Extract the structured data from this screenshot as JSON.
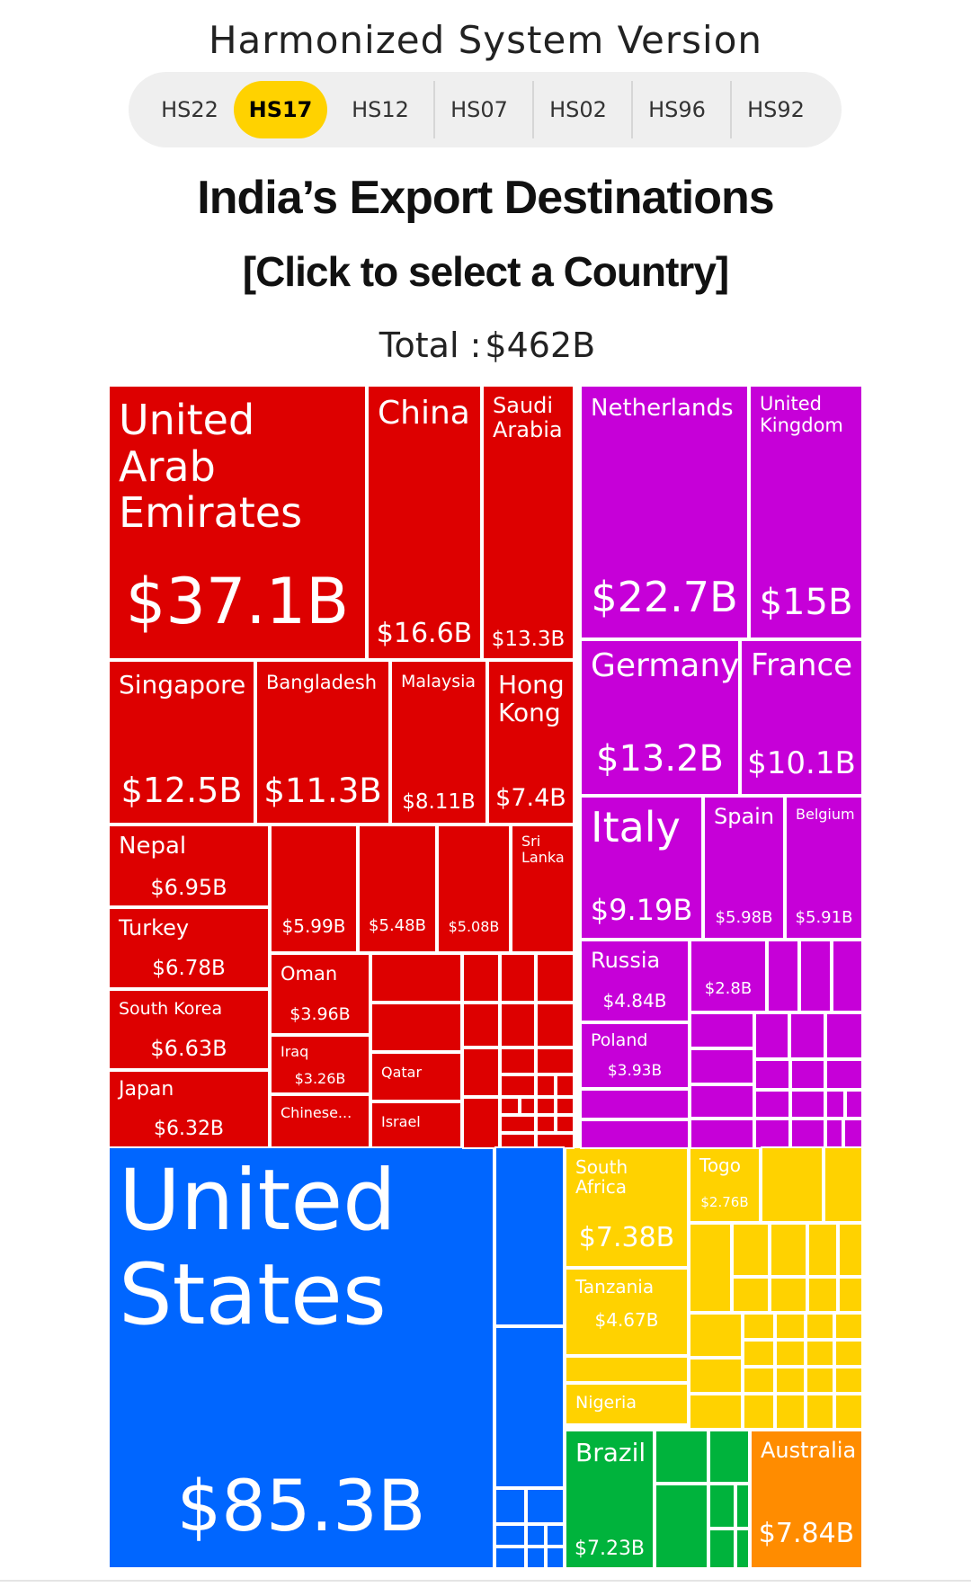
{
  "hs_selector": {
    "title": "Harmonized System Version",
    "tabs": [
      "HS22",
      "HS17",
      "HS12",
      "HS07",
      "HS02",
      "HS96",
      "HS92"
    ],
    "active": "HS17"
  },
  "heading": {
    "title": "India’s Export Destinations",
    "subtitle": "[Click to select a Country]",
    "total_label": "Total :",
    "total_value": "$462B"
  },
  "colors": {
    "asia": "#dd0000",
    "europe": "#c600d8",
    "north_america": "#0066ff",
    "africa": "#ffd200",
    "south_america": "#00b33c",
    "oceania": "#ff8c00"
  },
  "chart_data": {
    "type": "treemap",
    "title": "India’s Export Destinations",
    "total": "$462B",
    "tiles": [
      {
        "name": "United Arab Emirates",
        "value": "$37.1B",
        "region": "asia"
      },
      {
        "name": "China",
        "value": "$16.6B",
        "region": "asia"
      },
      {
        "name": "Saudi Arabia",
        "value": "$13.3B",
        "region": "asia"
      },
      {
        "name": "Singapore",
        "value": "$12.5B",
        "region": "asia"
      },
      {
        "name": "Bangladesh",
        "value": "$11.3B",
        "region": "asia"
      },
      {
        "name": "Malaysia",
        "value": "$8.11B",
        "region": "asia"
      },
      {
        "name": "Hong Kong",
        "value": "$7.4B",
        "region": "asia"
      },
      {
        "name": "Nepal",
        "value": "$6.95B",
        "region": "asia"
      },
      {
        "name": "Turkey",
        "value": "$6.78B",
        "region": "asia"
      },
      {
        "name": "South Korea",
        "value": "$6.63B",
        "region": "asia"
      },
      {
        "name": "Japan",
        "value": "$6.32B",
        "region": "asia"
      },
      {
        "name": "",
        "value": "$5.99B",
        "region": "asia"
      },
      {
        "name": "",
        "value": "$5.48B",
        "region": "asia"
      },
      {
        "name": "",
        "value": "$5.08B",
        "region": "asia"
      },
      {
        "name": "Sri Lanka",
        "value": "",
        "region": "asia"
      },
      {
        "name": "Oman",
        "value": "$3.96B",
        "region": "asia"
      },
      {
        "name": "Iraq",
        "value": "$3.26B",
        "region": "asia"
      },
      {
        "name": "Chinese...",
        "value": "",
        "region": "asia"
      },
      {
        "name": "Qatar",
        "value": "",
        "region": "asia"
      },
      {
        "name": "Israel",
        "value": "",
        "region": "asia"
      },
      {
        "name": "Netherlands",
        "value": "$22.7B",
        "region": "europe"
      },
      {
        "name": "United Kingdom",
        "value": "$15B",
        "region": "europe"
      },
      {
        "name": "Germany",
        "value": "$13.2B",
        "region": "europe"
      },
      {
        "name": "France",
        "value": "$10.1B",
        "region": "europe"
      },
      {
        "name": "Italy",
        "value": "$9.19B",
        "region": "europe"
      },
      {
        "name": "Spain",
        "value": "$5.98B",
        "region": "europe"
      },
      {
        "name": "Belgium",
        "value": "$5.91B",
        "region": "europe"
      },
      {
        "name": "Russia",
        "value": "$4.84B",
        "region": "europe"
      },
      {
        "name": "",
        "value": "$2.8B",
        "region": "europe"
      },
      {
        "name": "Poland",
        "value": "$3.93B",
        "region": "europe"
      },
      {
        "name": "United States",
        "value": "$85.3B",
        "region": "north_america"
      },
      {
        "name": "South Africa",
        "value": "$7.38B",
        "region": "africa"
      },
      {
        "name": "Togo",
        "value": "$2.76B",
        "region": "africa"
      },
      {
        "name": "Tanzania",
        "value": "$4.67B",
        "region": "africa"
      },
      {
        "name": "Nigeria",
        "value": "",
        "region": "africa"
      },
      {
        "name": "Brazil",
        "value": "$7.23B",
        "region": "south_america"
      },
      {
        "name": "Australia",
        "value": "$7.84B",
        "region": "oceania"
      }
    ]
  }
}
